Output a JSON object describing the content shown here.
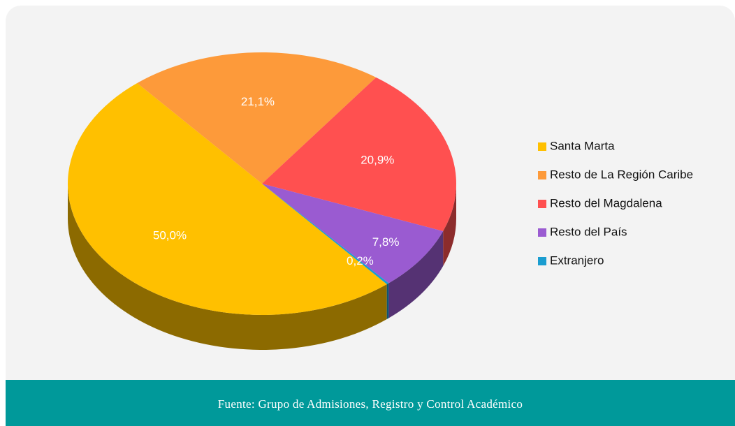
{
  "chart_data": {
    "type": "pie",
    "categories": [
      "Santa Marta",
      "Resto de La Región Caribe",
      "Resto del Magdalena",
      "Resto del País",
      "Extranjero"
    ],
    "values": [
      50.0,
      21.1,
      20.9,
      7.8,
      0.2
    ],
    "value_labels": [
      "50,0%",
      "21,1%",
      "20,9%",
      "7,8%",
      "0,2%"
    ],
    "colors": [
      "#ffc000",
      "#fd9a3a",
      "#ff5050",
      "#9a5bd1",
      "#1a9dd0"
    ],
    "source": "Fuente: Grupo de Admisiones, Registro y Control Académico"
  }
}
